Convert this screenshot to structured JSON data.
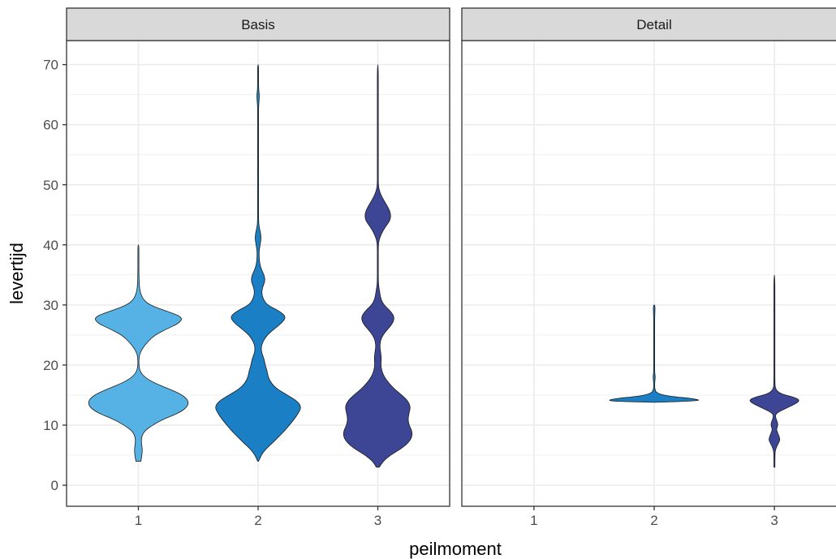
{
  "chart_data": {
    "type": "violin",
    "xlabel": "peilmoment",
    "ylabel": "levertijd",
    "ylim": [
      -3.5,
      74
    ],
    "yticks": [
      0,
      10,
      20,
      30,
      40,
      50,
      60,
      70
    ],
    "categories": [
      "1",
      "2",
      "3"
    ],
    "grid": true,
    "colors": {
      "1": "#56b1e4",
      "2": "#1a7fc4",
      "3": "#3d4694"
    },
    "panels": [
      {
        "name": "Basis",
        "violins": [
          {
            "x": "1",
            "color": "#56b1e4",
            "profile": [
              [
                4,
                0.05
              ],
              [
                5,
                0.07
              ],
              [
                6,
                0.08
              ],
              [
                7,
                0.06
              ],
              [
                8,
                0.06
              ],
              [
                9,
                0.12
              ],
              [
                10,
                0.28
              ],
              [
                11,
                0.5
              ],
              [
                12,
                0.8
              ],
              [
                13,
                0.97
              ],
              [
                14,
                1.0
              ],
              [
                15,
                0.88
              ],
              [
                16,
                0.62
              ],
              [
                17,
                0.32
              ],
              [
                18,
                0.12
              ],
              [
                19,
                0.03
              ],
              [
                20,
                0.01
              ],
              [
                21,
                0.0
              ],
              [
                22,
                0.03
              ],
              [
                23,
                0.1
              ],
              [
                24,
                0.2
              ],
              [
                25,
                0.33
              ],
              [
                26,
                0.56
              ],
              [
                27,
                0.82
              ],
              [
                28,
                0.88
              ],
              [
                29,
                0.55
              ],
              [
                30,
                0.22
              ],
              [
                31,
                0.09
              ],
              [
                32,
                0.04
              ],
              [
                33,
                0.02
              ],
              [
                35,
                0.01
              ],
              [
                38,
                0.01
              ],
              [
                40,
                0.01
              ]
            ]
          },
          {
            "x": "2",
            "color": "#1a7fc4",
            "profile": [
              [
                4,
                0.01
              ],
              [
                5,
                0.06
              ],
              [
                6,
                0.15
              ],
              [
                7,
                0.28
              ],
              [
                8,
                0.4
              ],
              [
                9,
                0.52
              ],
              [
                10,
                0.62
              ],
              [
                11,
                0.72
              ],
              [
                12,
                0.8
              ],
              [
                13,
                0.86
              ],
              [
                14,
                0.78
              ],
              [
                15,
                0.58
              ],
              [
                16,
                0.38
              ],
              [
                17,
                0.26
              ],
              [
                18,
                0.2
              ],
              [
                19,
                0.18
              ],
              [
                20,
                0.14
              ],
              [
                21,
                0.12
              ],
              [
                22,
                0.07
              ],
              [
                23,
                0.06
              ],
              [
                24,
                0.1
              ],
              [
                25,
                0.18
              ],
              [
                26,
                0.32
              ],
              [
                27,
                0.47
              ],
              [
                28,
                0.56
              ],
              [
                29,
                0.42
              ],
              [
                30,
                0.18
              ],
              [
                31,
                0.1
              ],
              [
                32,
                0.07
              ],
              [
                33,
                0.09
              ],
              [
                34,
                0.14
              ],
              [
                35,
                0.12
              ],
              [
                36,
                0.06
              ],
              [
                37,
                0.03
              ],
              [
                38,
                0.02
              ],
              [
                39,
                0.02
              ],
              [
                40,
                0.04
              ],
              [
                41,
                0.06
              ],
              [
                42,
                0.05
              ],
              [
                43,
                0.02
              ],
              [
                44,
                0.01
              ],
              [
                46,
                0.005
              ],
              [
                48,
                0.01
              ],
              [
                50,
                0.01
              ],
              [
                52,
                0.01
              ],
              [
                54,
                0.005
              ],
              [
                56,
                0.003
              ],
              [
                58,
                0.003
              ],
              [
                60,
                0.003
              ],
              [
                62,
                0.005
              ],
              [
                63,
                0.01
              ],
              [
                64,
                0.02
              ],
              [
                65,
                0.025
              ],
              [
                66,
                0.01
              ],
              [
                68,
                0.003
              ],
              [
                70,
                0.002
              ]
            ]
          },
          {
            "x": "3",
            "color": "#3d4694",
            "profile": [
              [
                3,
                0.03
              ],
              [
                4,
                0.1
              ],
              [
                5,
                0.25
              ],
              [
                6,
                0.45
              ],
              [
                7,
                0.6
              ],
              [
                8,
                0.68
              ],
              [
                9,
                0.68
              ],
              [
                10,
                0.62
              ],
              [
                11,
                0.6
              ],
              [
                12,
                0.62
              ],
              [
                13,
                0.65
              ],
              [
                14,
                0.6
              ],
              [
                15,
                0.48
              ],
              [
                16,
                0.33
              ],
              [
                17,
                0.22
              ],
              [
                18,
                0.13
              ],
              [
                19,
                0.08
              ],
              [
                20,
                0.06
              ],
              [
                21,
                0.07
              ],
              [
                22,
                0.06
              ],
              [
                23,
                0.04
              ],
              [
                24,
                0.05
              ],
              [
                25,
                0.1
              ],
              [
                26,
                0.2
              ],
              [
                27,
                0.3
              ],
              [
                28,
                0.33
              ],
              [
                29,
                0.25
              ],
              [
                30,
                0.12
              ],
              [
                31,
                0.06
              ],
              [
                32,
                0.04
              ],
              [
                33,
                0.02
              ],
              [
                34,
                0.01
              ],
              [
                36,
                0.005
              ],
              [
                38,
                0.005
              ],
              [
                40,
                0.01
              ],
              [
                41,
                0.03
              ],
              [
                42,
                0.08
              ],
              [
                43,
                0.15
              ],
              [
                44,
                0.24
              ],
              [
                45,
                0.26
              ],
              [
                46,
                0.22
              ],
              [
                47,
                0.15
              ],
              [
                48,
                0.08
              ],
              [
                49,
                0.03
              ],
              [
                50,
                0.01
              ],
              [
                52,
                0.003
              ],
              [
                55,
                0.002
              ],
              [
                60,
                0.002
              ],
              [
                65,
                0.002
              ],
              [
                70,
                0.001
              ]
            ]
          }
        ]
      },
      {
        "name": "Detail",
        "violins": [
          {
            "x": "2",
            "color": "#1a7fc4",
            "profile": [
              [
                13.8,
                0.0
              ],
              [
                14,
                0.95
              ],
              [
                14.4,
                0.8
              ],
              [
                14.8,
                0.3
              ],
              [
                15.3,
                0.05
              ],
              [
                16,
                0.01
              ],
              [
                17,
                0.005
              ],
              [
                17.8,
                0.02
              ],
              [
                18.2,
                0.02
              ],
              [
                18.8,
                0.005
              ],
              [
                20,
                0.003
              ],
              [
                22,
                0.003
              ],
              [
                25,
                0.003
              ],
              [
                28,
                0.003
              ],
              [
                30,
                0.02
              ]
            ]
          },
          {
            "x": "3",
            "color": "#3d4694",
            "profile": [
              [
                3,
                0.005
              ],
              [
                5,
                0.01
              ],
              [
                6,
                0.02
              ],
              [
                7,
                0.08
              ],
              [
                7.5,
                0.11
              ],
              [
                8,
                0.1
              ],
              [
                8.8,
                0.06
              ],
              [
                9.3,
                0.04
              ],
              [
                10,
                0.07
              ],
              [
                10.5,
                0.06
              ],
              [
                11.3,
                0.02
              ],
              [
                12,
                0.03
              ],
              [
                13,
                0.28
              ],
              [
                14,
                0.52
              ],
              [
                14.6,
                0.42
              ],
              [
                15.2,
                0.12
              ],
              [
                16,
                0.02
              ],
              [
                17,
                0.005
              ],
              [
                20,
                0.002
              ],
              [
                25,
                0.002
              ],
              [
                30,
                0.002
              ],
              [
                35,
                0.001
              ]
            ]
          }
        ]
      }
    ]
  }
}
